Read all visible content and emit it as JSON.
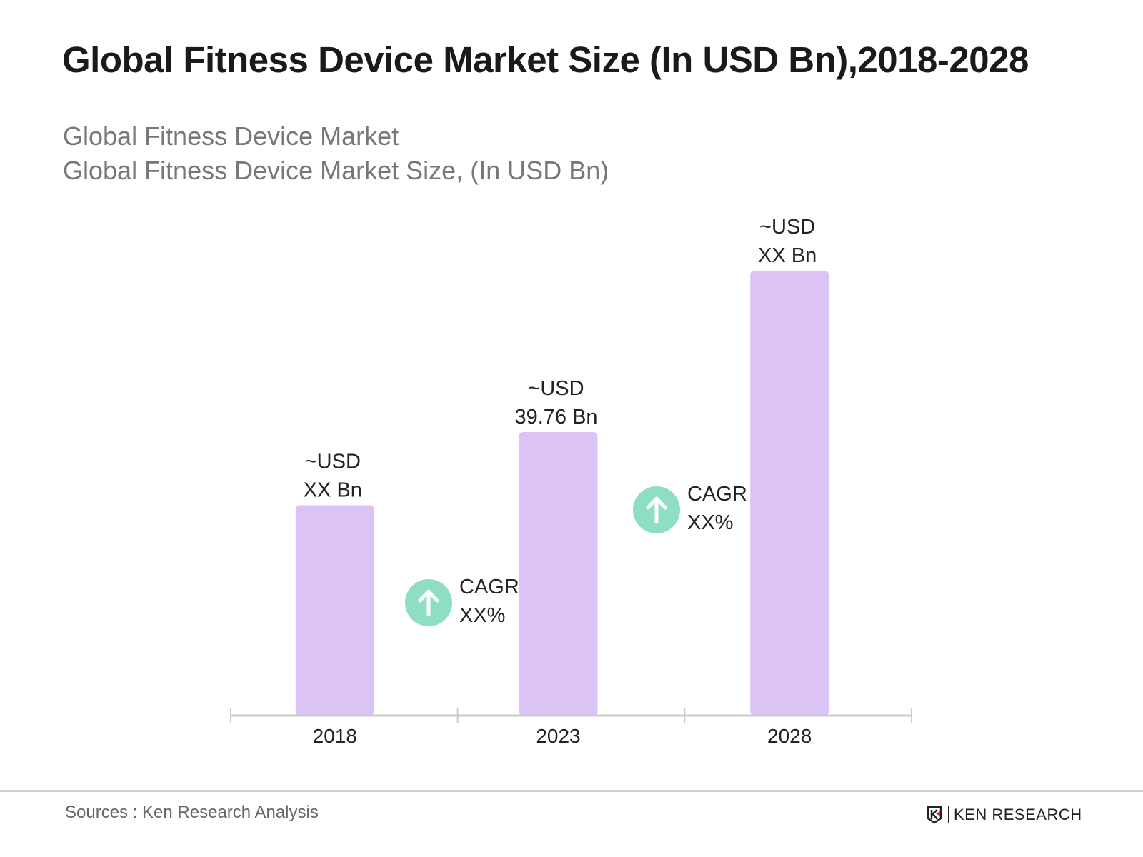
{
  "title": "Global Fitness Device Market Size (In USD Bn),2018-2028",
  "subtitle_1": "Global Fitness Device Market",
  "subtitle_2": "Global Fitness Device Market Size, (In USD Bn)",
  "source": "Sources : Ken Research Analysis",
  "logo_text": "KEN RESEARCH",
  "colors": {
    "bar": "#dcc3f5",
    "cagr_circle": "#8edfc2",
    "axis": "#cccccc"
  },
  "chart_data": {
    "type": "bar",
    "categories": [
      "2018",
      "2023",
      "2028"
    ],
    "values": [
      29.5,
      39.76,
      62.4
    ],
    "data_labels": [
      [
        "~USD",
        "XX Bn"
      ],
      [
        "~USD",
        "39.76 Bn"
      ],
      [
        "~USD",
        "XX Bn"
      ]
    ],
    "annotations": [
      {
        "icon": "arrow-up-icon",
        "lines": [
          "CAGR",
          "XX%"
        ],
        "between": [
          "2018",
          "2023"
        ]
      },
      {
        "icon": "arrow-up-icon",
        "lines": [
          "CAGR",
          "XX%"
        ],
        "between": [
          "2023",
          "2028"
        ]
      }
    ],
    "ylim": [
      0,
      65
    ],
    "grid": false,
    "y_axis_shown": false
  }
}
